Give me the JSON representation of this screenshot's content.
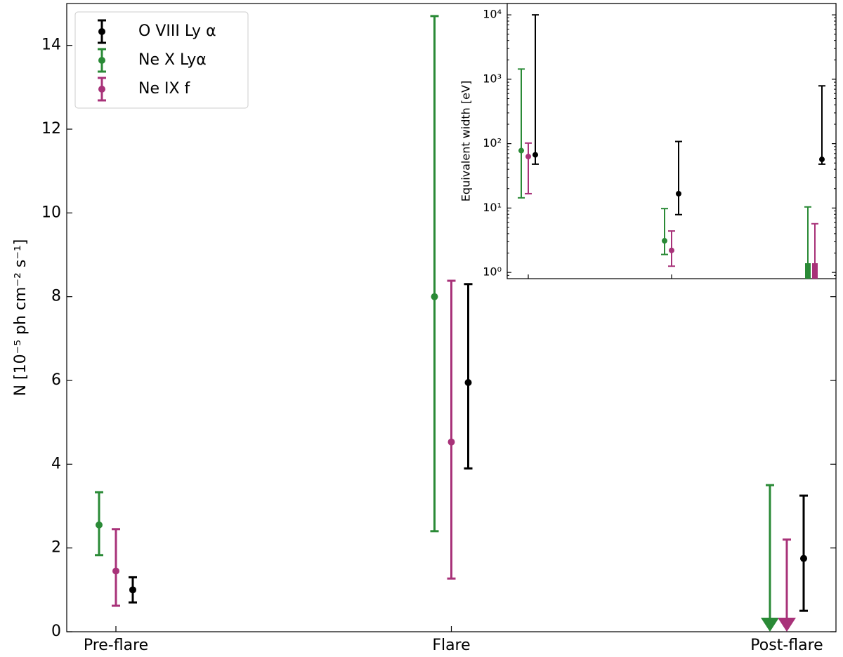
{
  "chart_data": [
    {
      "type": "errorbar",
      "ylabel": "N [10⁻⁵ ph cm⁻² s⁻¹]",
      "categories": [
        "Pre-flare",
        "Flare",
        "Post-flare"
      ],
      "ylim": [
        0,
        15
      ],
      "yticks": [
        0,
        2,
        4,
        6,
        8,
        10,
        12,
        14
      ],
      "legend": "upper left",
      "series": [
        {
          "name": "O VIII Ly α",
          "color": "#000000",
          "values": [
            1.0,
            5.95,
            1.75
          ],
          "lower": [
            0.7,
            3.9,
            0.5
          ],
          "upper": [
            1.3,
            8.3,
            3.25
          ],
          "upper_limit": [
            false,
            false,
            false
          ]
        },
        {
          "name": "Ne X Lyα",
          "color": "#2a8a36",
          "values": [
            2.55,
            8.0,
            null
          ],
          "lower": [
            1.83,
            2.4,
            null
          ],
          "upper": [
            3.33,
            14.7,
            3.5
          ],
          "upper_limit": [
            false,
            false,
            true
          ]
        },
        {
          "name": "Ne IX f",
          "color": "#a83279",
          "values": [
            1.45,
            4.53,
            null
          ],
          "lower": [
            0.62,
            1.27,
            null
          ],
          "upper": [
            2.45,
            8.38,
            2.2
          ],
          "upper_limit": [
            false,
            false,
            true
          ]
        }
      ]
    },
    {
      "type": "errorbar",
      "ylabel": "Equivalent width [eV]",
      "log_y": true,
      "ylim": [
        0.8,
        15000
      ],
      "yticks": [
        {
          "value": 1,
          "label": "10⁰"
        },
        {
          "value": 10,
          "label": "10¹"
        },
        {
          "value": 100,
          "label": "10²"
        },
        {
          "value": 1000,
          "label": "10³"
        },
        {
          "value": 10000,
          "label": "10⁴"
        }
      ],
      "categories": [
        null,
        null,
        null
      ],
      "series": [
        {
          "color": "#000000",
          "values": [
            67,
            16.7,
            57
          ],
          "lower": [
            48,
            7.9,
            48
          ],
          "upper": [
            10000,
            108,
            790
          ],
          "upper_limit": [
            false,
            false,
            false
          ]
        },
        {
          "color": "#2a8a36",
          "values": [
            78,
            3.1,
            null
          ],
          "lower": [
            14.4,
            1.9,
            null
          ],
          "upper": [
            1440,
            9.8,
            10.4
          ],
          "upper_limit": [
            false,
            false,
            true
          ]
        },
        {
          "color": "#a83279",
          "values": [
            63,
            2.2,
            null
          ],
          "lower": [
            16.7,
            1.25,
            null
          ],
          "upper": [
            102,
            4.4,
            5.7
          ],
          "upper_limit": [
            false,
            false,
            true
          ]
        }
      ]
    }
  ]
}
